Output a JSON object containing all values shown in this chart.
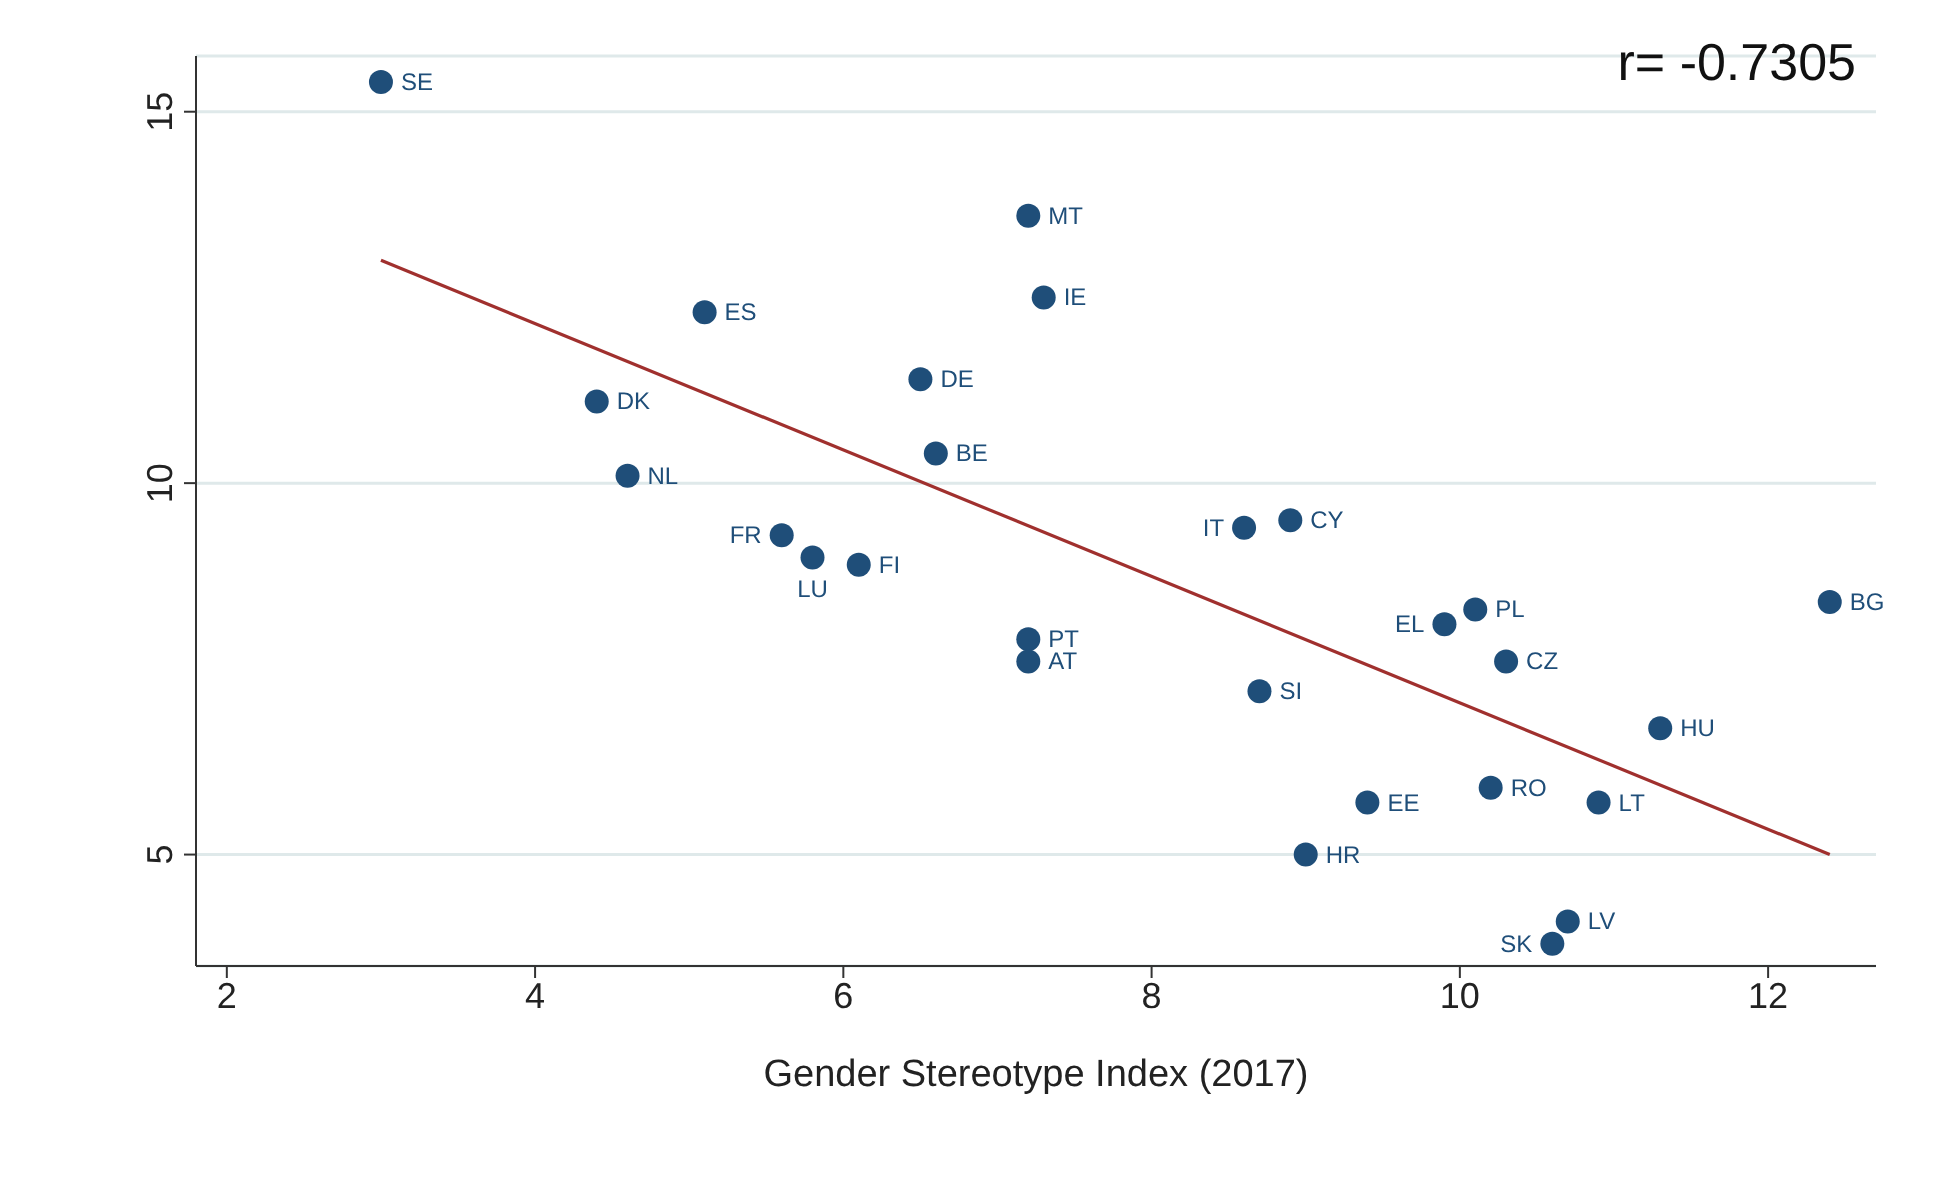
{
  "chart_data": {
    "type": "scatter",
    "xlabel": "Gender Stereotype Index (2017)",
    "annotations": [
      "r= -0.7305"
    ],
    "xlim": [
      1.8,
      12.7
    ],
    "xticks": [
      2,
      4,
      6,
      8,
      10,
      12
    ],
    "ylim": [
      3.5,
      15.75
    ],
    "yticks": [
      5,
      10,
      15
    ],
    "grid": "y",
    "legend": false,
    "series": [
      {
        "marker": "circle",
        "color": "#1f4e79",
        "x": [
          3.0,
          7.2,
          7.3,
          5.1,
          6.5,
          4.4,
          6.6,
          4.6,
          8.9,
          8.6,
          5.6,
          5.8,
          6.1,
          12.4,
          10.1,
          9.9,
          7.2,
          7.2,
          10.3,
          8.7,
          11.3,
          10.2,
          9.4,
          10.9,
          9.0,
          10.7,
          10.6
        ],
        "values": [
          15.4,
          13.6,
          12.5,
          12.3,
          11.4,
          11.1,
          10.4,
          10.1,
          9.5,
          9.4,
          9.3,
          9.0,
          8.9,
          8.4,
          8.3,
          8.1,
          7.9,
          7.6,
          7.6,
          7.2,
          6.7,
          5.9,
          5.7,
          5.7,
          5.0,
          4.1,
          3.8
        ],
        "value_labels": [
          "SE",
          "MT",
          "IE",
          "ES",
          "DE",
          "DK",
          "BE",
          "NL",
          "CY",
          "IT",
          "FR",
          "LU",
          "FI",
          "BG",
          "PL",
          "EL",
          "PT",
          "AT",
          "CZ",
          "SI",
          "HU",
          "RO",
          "EE",
          "LT",
          "HR",
          "LV",
          "SK"
        ]
      },
      {
        "type": "line",
        "color": "#a0302e",
        "x": [
          3.0,
          12.4
        ],
        "values": [
          13.0,
          5.0
        ]
      }
    ]
  }
}
